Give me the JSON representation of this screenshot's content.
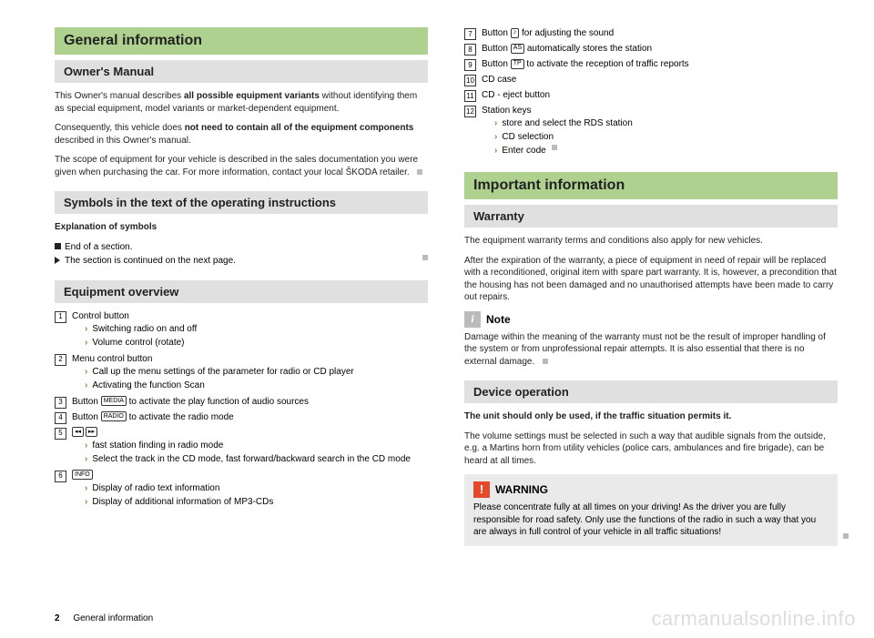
{
  "left": {
    "title": "General information",
    "owners_manual": {
      "heading": "Owner's Manual",
      "p1a": "This Owner's manual describes ",
      "p1b": "all possible equipment variants",
      "p1c": " without identifying them as special equipment, model variants or market-dependent equipment.",
      "p2a": "Consequently, this vehicle does ",
      "p2b": "not need to contain all of the equipment components",
      "p2c": " described in this Owner's manual.",
      "p3": "The scope of equipment for your vehicle is described in the sales documentation you were given when purchasing the car. For more information, contact your local ŠKODA retailer."
    },
    "symbols": {
      "heading": "Symbols in the text of the operating instructions",
      "expl_label": "Explanation of symbols",
      "end": "End of a section.",
      "cont": "The section is continued on the next page."
    },
    "equipment": {
      "heading": "Equipment overview",
      "items": [
        {
          "num": "1",
          "label": "Control button",
          "subs": [
            "Switching radio on and off",
            "Volume control (rotate)"
          ]
        },
        {
          "num": "2",
          "label": "Menu control button",
          "subs": [
            "Call up the menu settings of the parameter for radio or CD player",
            "Activating the function Scan"
          ]
        },
        {
          "num": "3",
          "label_pre": "Button ",
          "btn": "MEDIA",
          "label_post": " to activate the play function of audio sources"
        },
        {
          "num": "4",
          "label_pre": "Button ",
          "btn": "RADIO",
          "label_post": " to activate the radio mode"
        },
        {
          "num": "5",
          "btns": [
            "◂◂",
            "▸▸"
          ],
          "subs": [
            "fast station finding in radio mode",
            "Select the track in the CD mode, fast forward/backward search in the CD mode"
          ]
        },
        {
          "num": "6",
          "btn_only": "INFO",
          "subs": [
            "Display of radio text information",
            "Display of additional information of MP3-CDs"
          ]
        }
      ]
    }
  },
  "right": {
    "top_items": [
      {
        "num": "7",
        "label_pre": "Button ",
        "btn": "♪",
        "label_post": " for adjusting the sound"
      },
      {
        "num": "8",
        "label_pre": "Button ",
        "btn": "AS",
        "label_post": " automatically stores the station"
      },
      {
        "num": "9",
        "label_pre": "Button ",
        "btn": "TP",
        "label_post": " to activate the reception of traffic reports"
      },
      {
        "num": "10",
        "label": "CD case"
      },
      {
        "num": "11",
        "label": "CD - eject button"
      },
      {
        "num": "12",
        "label": "Station keys",
        "subs": [
          "store and select the RDS station",
          "CD selection",
          "Enter code"
        ]
      }
    ],
    "important": {
      "heading": "Important information",
      "warranty": {
        "heading": "Warranty",
        "p1": "The equipment warranty terms and conditions also apply for new vehicles.",
        "p2": "After the expiration of the warranty, a piece of equipment in need of repair will be replaced with a reconditioned, original item with spare part warranty. It is, however, a precondition that the housing has not been damaged and no unauthorised attempts have been made to carry out repairs.",
        "note_label": "Note",
        "note_body": "Damage within the meaning of the warranty must not be the result of improper handling of the system or from unprofessional repair attempts. It is also essential that there is no external damage."
      },
      "device": {
        "heading": "Device operation",
        "p1": "The unit should only be used, if the traffic situation permits it.",
        "p2": "The volume settings must be selected in such a way that audible signals from the outside, e.g. a Martins horn from utility vehicles (police cars, ambulances and fire brigade), can be heard at all times.",
        "warn_label": "WARNING",
        "warn_body": "Please concentrate fully at all times on your driving! As the driver you are fully responsible for road safety. Only use the functions of the radio in such a way that you are always in full control of your vehicle in all traffic situations!"
      }
    }
  },
  "footer": {
    "page": "2",
    "section": "General information"
  },
  "watermark": "carmanualsonline.info"
}
